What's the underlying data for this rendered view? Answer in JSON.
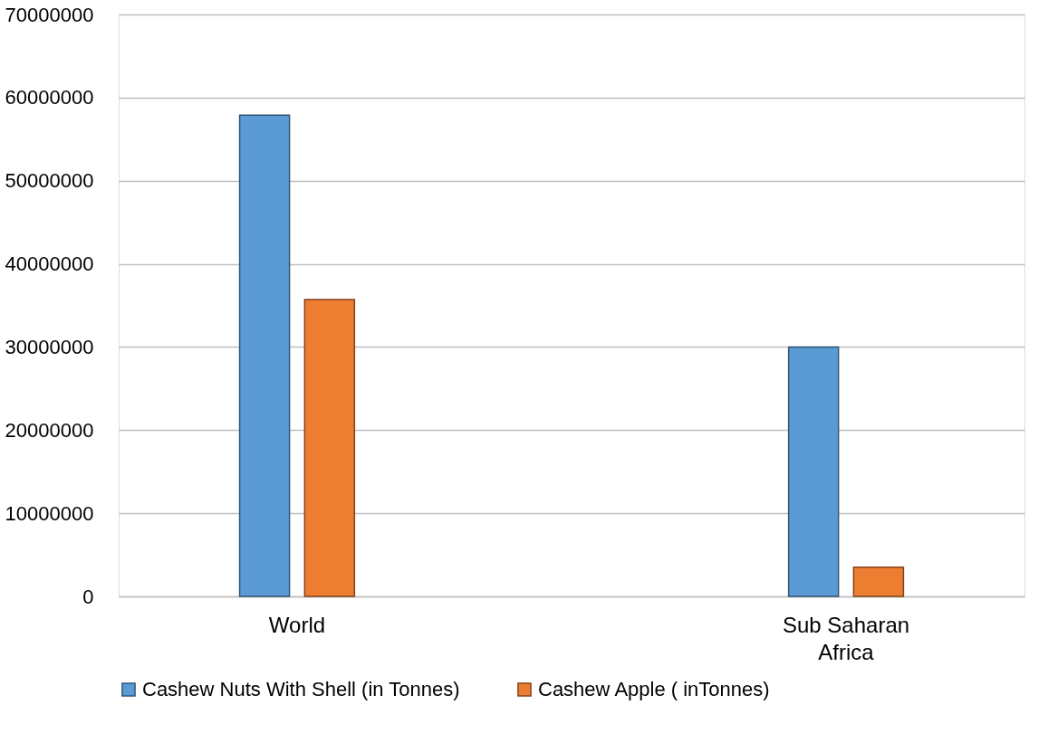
{
  "chart_data": {
    "type": "bar",
    "categories": [
      "World",
      "Sub Saharan Africa"
    ],
    "series": [
      {
        "name": "Cashew Nuts With Shell (in Tonnes)",
        "color": "#5b9bd5",
        "values": [
          57900000,
          30000000
        ]
      },
      {
        "name": "Cashew Apple ( inTonnes)",
        "color": "#ed7d31",
        "values": [
          35700000,
          3500000
        ]
      }
    ],
    "ylim": [
      0,
      70000000
    ],
    "yticks": [
      0,
      10000000,
      20000000,
      30000000,
      40000000,
      50000000,
      60000000,
      70000000
    ],
    "grid": "y",
    "legend": "bottom"
  }
}
